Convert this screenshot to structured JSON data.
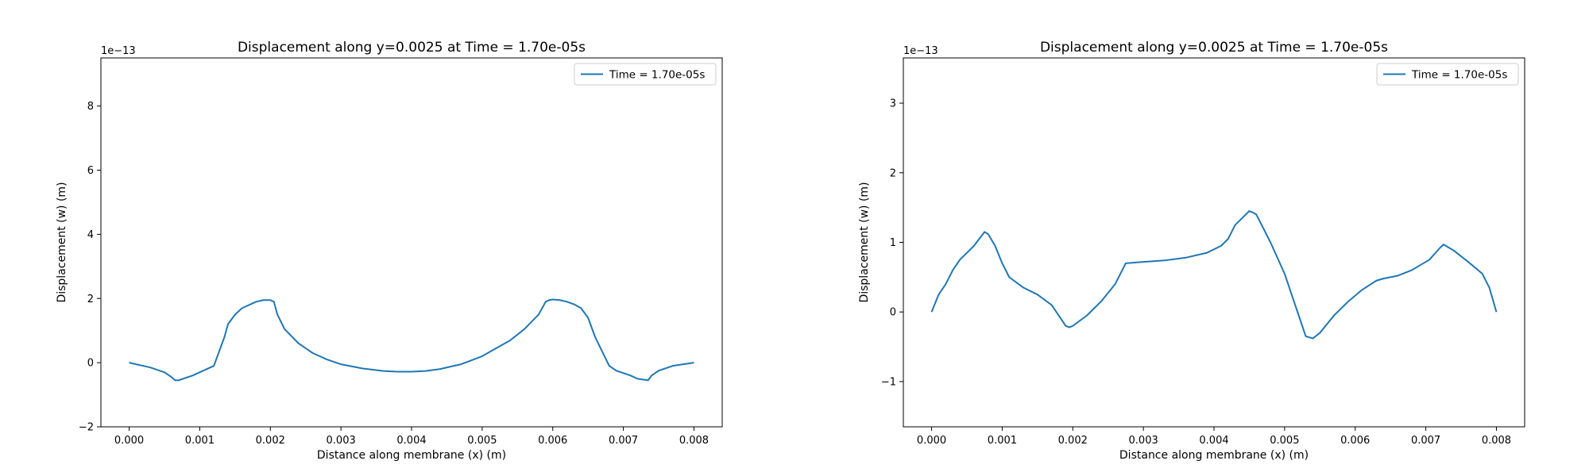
{
  "chart_data": [
    {
      "type": "line",
      "title": "Displacement along y=0.0025 at Time = 1.70e-05s",
      "xlabel": "Distance along membrane (x) (m)",
      "ylabel": "Displacement (w) (m)",
      "y_offset_label": "1e−13",
      "xlim": [
        -0.0004,
        0.0084
      ],
      "ylim": [
        -2.0,
        9.5
      ],
      "x_ticks": [
        0.0,
        0.001,
        0.002,
        0.003,
        0.004,
        0.005,
        0.006,
        0.007,
        0.008
      ],
      "x_tick_labels": [
        "0.000",
        "0.001",
        "0.002",
        "0.003",
        "0.004",
        "0.005",
        "0.006",
        "0.007",
        "0.008"
      ],
      "y_ticks": [
        -2,
        0,
        2,
        4,
        6,
        8
      ],
      "y_tick_labels": [
        "−2",
        "0",
        "2",
        "4",
        "6",
        "8"
      ],
      "grid": false,
      "legend_position": "top-right",
      "series": [
        {
          "name": "Time = 1.70e-05s",
          "color": "#1f77b4",
          "x": [
            0.0,
            0.0003,
            0.0005,
            0.0006,
            0.00065,
            0.0007,
            0.0009,
            0.0011,
            0.0012,
            0.00135,
            0.0014,
            0.0015,
            0.0016,
            0.0018,
            0.0019,
            0.002,
            0.00205,
            0.0021,
            0.0022,
            0.0024,
            0.0026,
            0.0028,
            0.003,
            0.0033,
            0.0036,
            0.0038,
            0.004,
            0.0042,
            0.0044,
            0.0047,
            0.005,
            0.0052,
            0.0054,
            0.0056,
            0.0058,
            0.0059,
            0.00595,
            0.006,
            0.0061,
            0.0062,
            0.0063,
            0.0064,
            0.0065,
            0.0066,
            0.0068,
            0.0069,
            0.0071,
            0.0072,
            0.00735,
            0.0074,
            0.0075,
            0.0077,
            0.008
          ],
          "y": [
            0.0,
            -0.15,
            -0.3,
            -0.45,
            -0.55,
            -0.55,
            -0.4,
            -0.2,
            -0.1,
            0.8,
            1.2,
            1.5,
            1.7,
            1.9,
            1.95,
            1.95,
            1.9,
            1.5,
            1.05,
            0.6,
            0.3,
            0.1,
            -0.05,
            -0.18,
            -0.26,
            -0.28,
            -0.28,
            -0.26,
            -0.2,
            -0.05,
            0.2,
            0.45,
            0.7,
            1.05,
            1.5,
            1.9,
            1.95,
            1.97,
            1.95,
            1.9,
            1.82,
            1.7,
            1.4,
            0.8,
            -0.1,
            -0.25,
            -0.4,
            -0.5,
            -0.55,
            -0.4,
            -0.25,
            -0.1,
            0.0
          ]
        }
      ]
    },
    {
      "type": "line",
      "title": "Displacement along y=0.0025 at Time = 1.70e-05s",
      "xlabel": "Distance along membrane (x) (m)",
      "ylabel": "Displacement (w) (m)",
      "y_offset_label": "1e−13",
      "xlim": [
        -0.0004,
        0.0084
      ],
      "ylim": [
        -1.65,
        3.65
      ],
      "x_ticks": [
        0.0,
        0.001,
        0.002,
        0.003,
        0.004,
        0.005,
        0.006,
        0.007,
        0.008
      ],
      "x_tick_labels": [
        "0.000",
        "0.001",
        "0.002",
        "0.003",
        "0.004",
        "0.005",
        "0.006",
        "0.007",
        "0.008"
      ],
      "y_ticks": [
        -1,
        0,
        1,
        2,
        3
      ],
      "y_tick_labels": [
        "−1",
        "0",
        "1",
        "2",
        "3"
      ],
      "grid": false,
      "legend_position": "top-right",
      "series": [
        {
          "name": "Time = 1.70e-05s",
          "color": "#1f77b4",
          "x": [
            0.0,
            0.0001,
            0.0002,
            0.0003,
            0.0004,
            0.0006,
            0.00075,
            0.0008,
            0.0009,
            0.001,
            0.0011,
            0.0013,
            0.0015,
            0.0017,
            0.0018,
            0.0019,
            0.00195,
            0.002,
            0.0022,
            0.0024,
            0.0026,
            0.0027,
            0.00275,
            0.003,
            0.0033,
            0.0036,
            0.0039,
            0.0041,
            0.0042,
            0.0043,
            0.0044,
            0.0045,
            0.00455,
            0.0046,
            0.0048,
            0.005,
            0.0052,
            0.0053,
            0.0054,
            0.0055,
            0.0057,
            0.0059,
            0.0061,
            0.0063,
            0.0064,
            0.0066,
            0.0068,
            0.00705,
            0.0072,
            0.00725,
            0.0074,
            0.0076,
            0.0078,
            0.0079,
            0.008
          ],
          "y": [
            0.0,
            0.25,
            0.4,
            0.6,
            0.75,
            0.95,
            1.15,
            1.12,
            0.95,
            0.7,
            0.5,
            0.35,
            0.25,
            0.1,
            -0.05,
            -0.2,
            -0.22,
            -0.2,
            -0.05,
            0.15,
            0.4,
            0.6,
            0.7,
            0.72,
            0.74,
            0.78,
            0.85,
            0.95,
            1.05,
            1.25,
            1.35,
            1.45,
            1.43,
            1.4,
            1.0,
            0.55,
            -0.05,
            -0.35,
            -0.38,
            -0.3,
            -0.05,
            0.15,
            0.32,
            0.45,
            0.48,
            0.52,
            0.6,
            0.75,
            0.92,
            0.97,
            0.88,
            0.72,
            0.55,
            0.35,
            0.0
          ]
        }
      ]
    }
  ]
}
